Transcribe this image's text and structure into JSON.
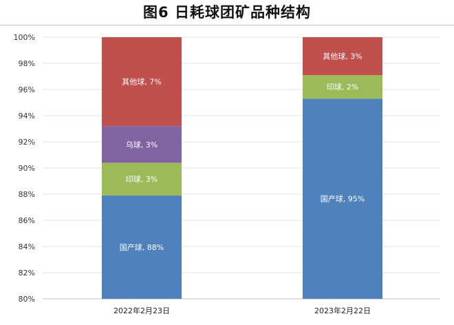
{
  "page": {
    "title": "图6 日耗球团矿品种结构"
  },
  "chart_data": {
    "type": "bar",
    "stacked": true,
    "title": "图6 日耗球团矿品种结构",
    "xlabel": "",
    "ylabel": "",
    "ylim": [
      0.8,
      1.0
    ],
    "yticks": [
      "80%",
      "82%",
      "84%",
      "86%",
      "88%",
      "90%",
      "92%",
      "94%",
      "96%",
      "98%",
      "100%"
    ],
    "grid": true,
    "categories": [
      "2022年2月23日",
      "2023年2月22日"
    ],
    "stacks": [
      {
        "category": "2022年2月23日",
        "segments": [
          {
            "label": "国产球, 88%",
            "value": 0.879,
            "color": "#4f81bd"
          },
          {
            "label": "印球, 3%",
            "value": 0.025,
            "color": "#9bbb59"
          },
          {
            "label": "乌球, 3%",
            "value": 0.028,
            "color": "#8064a2"
          },
          {
            "label": "其他球, 7%",
            "value": 0.068,
            "color": "#c0504d"
          }
        ]
      },
      {
        "category": "2023年2月22日",
        "segments": [
          {
            "label": "国产球, 95%",
            "value": 0.953,
            "color": "#4f81bd"
          },
          {
            "label": "印球, 2%",
            "value": 0.018,
            "color": "#9bbb59"
          },
          {
            "label": "其他球, 3%",
            "value": 0.029,
            "color": "#c0504d"
          }
        ]
      }
    ]
  }
}
